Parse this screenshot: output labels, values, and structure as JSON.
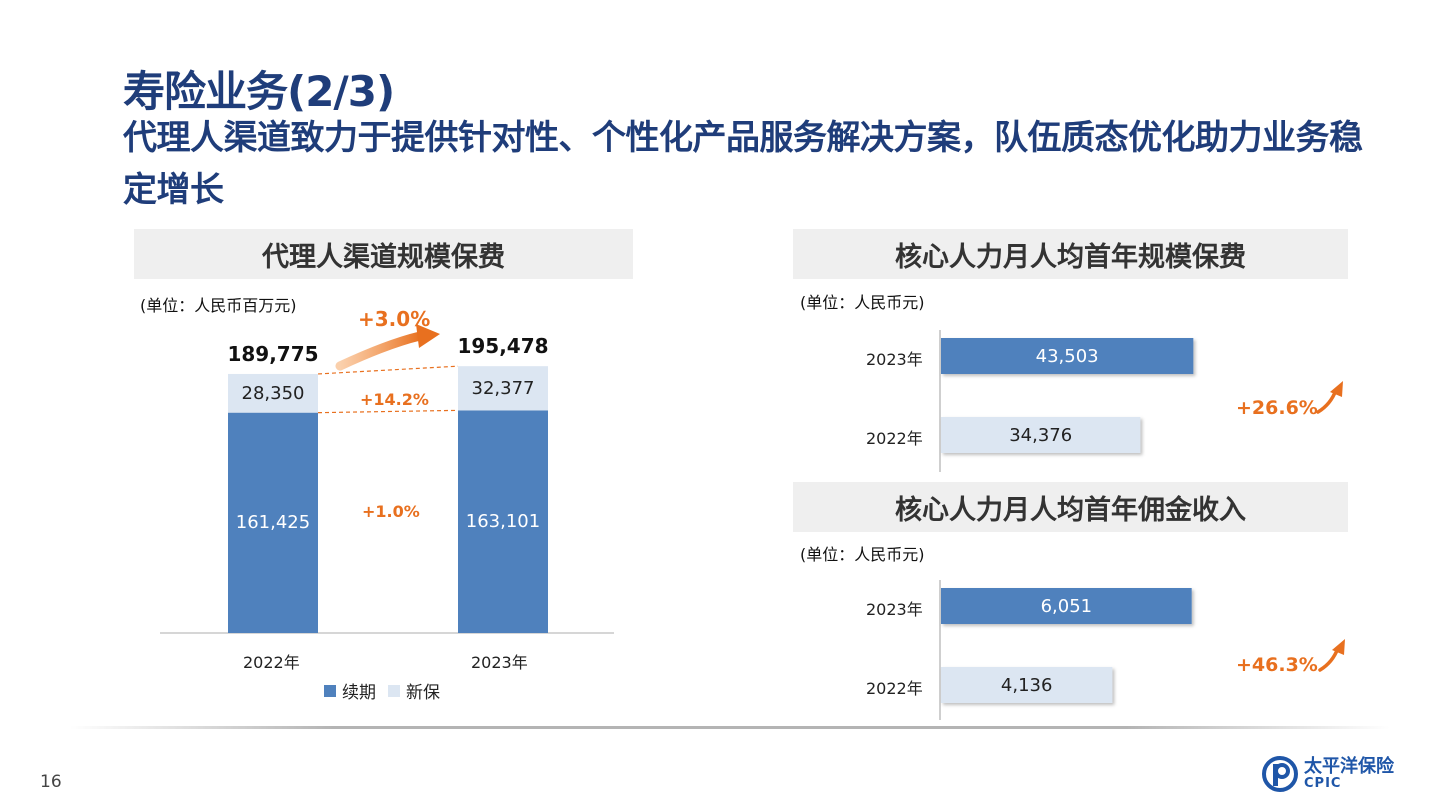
{
  "title": {
    "main": "寿险业务(2/3)",
    "sub": "代理人渠道致力于提供针对性、个性化产品服务解决方案，队伍质态优化助力业务稳定增长"
  },
  "colors": {
    "title": "#1f3d7a",
    "renewal": "#4f81bd",
    "new_business": "#dce6f2",
    "growth": "#e8701f"
  },
  "chart_data": [
    {
      "type": "bar",
      "stacked": true,
      "title": "代理人渠道规模保费",
      "unit": "(单位：人民币百万元)",
      "categories": [
        "2022年",
        "2023年"
      ],
      "series": [
        {
          "name": "续期",
          "values": [
            161425,
            163101
          ],
          "labels": [
            "161,425",
            "163,101"
          ]
        },
        {
          "name": "新保",
          "values": [
            28350,
            32377
          ],
          "labels": [
            "28,350",
            "32,377"
          ]
        }
      ],
      "totals": [
        189775,
        195478
      ],
      "total_labels": [
        "189,775",
        "195,478"
      ],
      "growth": {
        "total": "+3.0%",
        "new": "+14.2%",
        "renewal": "+1.0%"
      },
      "legend": "bottom",
      "ylim": [
        0,
        200000
      ]
    },
    {
      "type": "bar",
      "orientation": "horizontal",
      "title": "核心人力月人均首年规模保费",
      "unit": "(单位：人民币元)",
      "categories": [
        "2023年",
        "2022年"
      ],
      "values": [
        43503,
        34376
      ],
      "labels": [
        "43,503",
        "34,376"
      ],
      "growth": "+26.6%",
      "xlim": [
        0,
        50000
      ]
    },
    {
      "type": "bar",
      "orientation": "horizontal",
      "title": "核心人力月人均首年佣金收入",
      "unit": "(单位：人民币元)",
      "categories": [
        "2023年",
        "2022年"
      ],
      "values": [
        6051,
        4136
      ],
      "labels": [
        "6,051",
        "4,136"
      ],
      "growth": "+46.3%",
      "xlim": [
        0,
        7000
      ]
    }
  ],
  "footer": {
    "page_number": "16",
    "logo_cn": "太平洋保险",
    "logo_en": "CPIC",
    "logo_icon": "cpic-logo-icon"
  }
}
